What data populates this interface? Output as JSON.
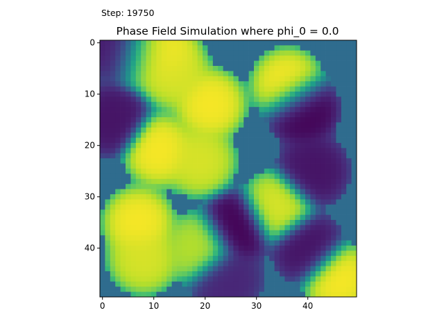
{
  "figure": {
    "step_label": "Step: 19750",
    "title": "Phase Field Simulation where phi_0 = 0.0"
  },
  "colormap": [
    "#440154",
    "#482878",
    "#3e4989",
    "#31688e",
    "#26828e",
    "#1f9e89",
    "#35b779",
    "#6ece58",
    "#b5de2b",
    "#fde725"
  ],
  "chart_data": {
    "type": "heatmap",
    "title": "Phase Field Simulation where phi_0 = 0.0",
    "xlabel": "",
    "ylabel": "",
    "grid_size": [
      50,
      50
    ],
    "xlim": [
      -0.5,
      49.5
    ],
    "ylim": [
      49.5,
      -0.5
    ],
    "x_ticks": [
      0,
      10,
      20,
      30,
      40
    ],
    "y_ticks": [
      0,
      10,
      20,
      30,
      40
    ],
    "value_range": [
      0,
      1
    ],
    "colormap": "viridis",
    "grid": false,
    "features": [
      {
        "row": 13,
        "col": 39,
        "value": 0.0
      },
      {
        "row": 36,
        "col": 26,
        "value": 0.0
      },
      {
        "row": 1,
        "col": 4,
        "value": 0.05
      },
      {
        "row": 2,
        "col": 8,
        "value": 0.9
      },
      {
        "row": 2,
        "col": 12,
        "value": 1.0
      },
      {
        "row": 6,
        "col": 14,
        "value": 0.95
      },
      {
        "row": 12,
        "col": 21,
        "value": 1.0
      },
      {
        "row": 8,
        "col": 36,
        "value": 1.0
      },
      {
        "row": 21,
        "col": 11,
        "value": 1.0
      },
      {
        "row": 23,
        "col": 19,
        "value": 0.95
      },
      {
        "row": 35,
        "col": 7,
        "value": 1.0
      },
      {
        "row": 42,
        "col": 8,
        "value": 0.95
      },
      {
        "row": 46,
        "col": 46,
        "value": 1.0
      },
      {
        "row": 32,
        "col": 34,
        "value": 0.95
      },
      {
        "row": 40,
        "col": 19,
        "value": 0.9
      },
      {
        "row": 25,
        "col": 41,
        "value": 0.05
      },
      {
        "row": 15,
        "col": 2,
        "value": 0.05
      },
      {
        "row": 40,
        "col": 40,
        "value": 0.05
      },
      {
        "row": 46,
        "col": 24,
        "value": 0.1
      }
    ]
  }
}
